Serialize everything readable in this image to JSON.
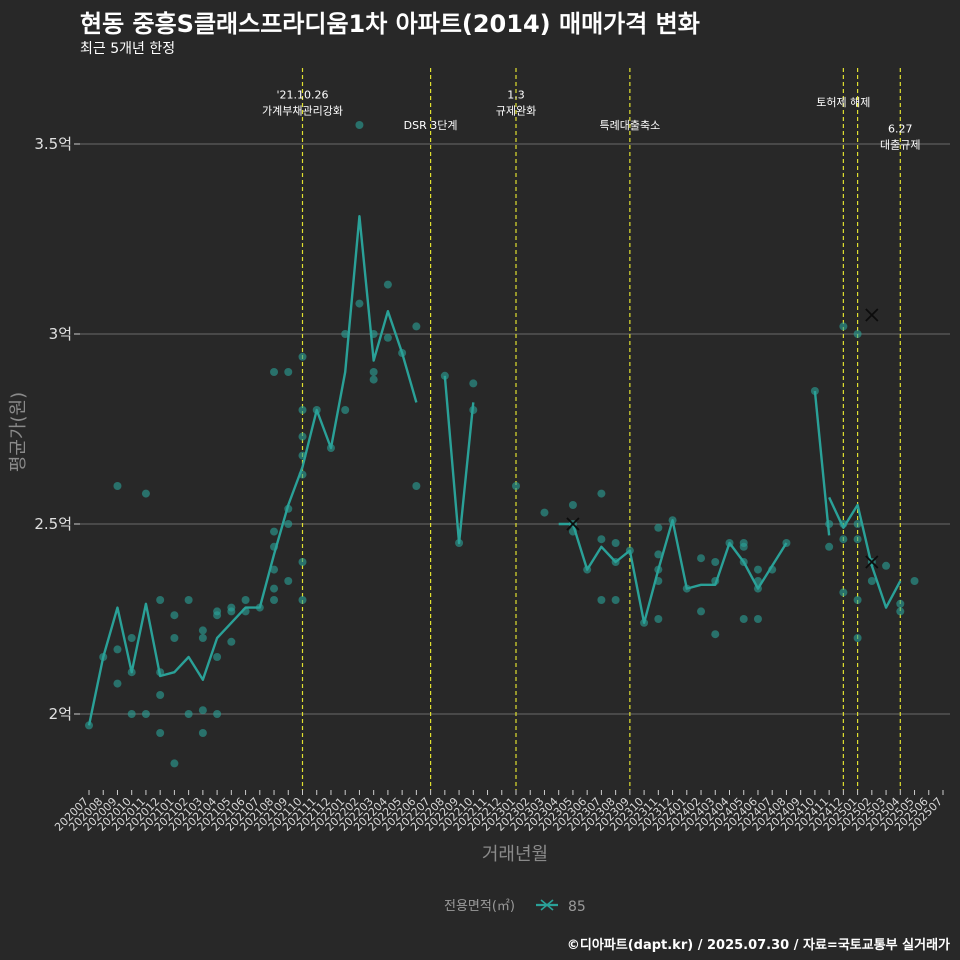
{
  "header": {
    "title": "현동 중흥S클래스프라디움1차 아파트(2014) 매매가격 변화",
    "subtitle": "최근 5개년 한정",
    "caption": "©디아파트(dapt.kr) / 2025.07.30 / 자료=국토교통부 실거래가"
  },
  "colors": {
    "background": "#282828",
    "series": "#2aa198",
    "event_line": "#e0e030",
    "grid": "#6a6a6a"
  },
  "chart_data": {
    "type": "line",
    "title": "현동 중흥S클래스프라디움1차 아파트(2014) 매매가격 변화",
    "subtitle": "최근 5개년 한정",
    "xlabel": "거래년월",
    "ylabel": "평균가(원)",
    "ylim": [
      1.8,
      3.7
    ],
    "yticks": [
      {
        "value": 2.0,
        "label": "2억"
      },
      {
        "value": 2.5,
        "label": "2.5억"
      },
      {
        "value": 3.0,
        "label": "3억"
      },
      {
        "value": 3.5,
        "label": "3.5억"
      }
    ],
    "grid": true,
    "legend": {
      "position": "bottom",
      "title": "전용면적(㎡)",
      "entries": [
        "85"
      ]
    },
    "categories": [
      "202007",
      "202008",
      "202009",
      "202010",
      "202011",
      "202012",
      "202101",
      "202102",
      "202103",
      "202104",
      "202105",
      "202106",
      "202107",
      "202108",
      "202109",
      "202110",
      "202111",
      "202112",
      "202201",
      "202202",
      "202203",
      "202204",
      "202205",
      "202206",
      "202207",
      "202208",
      "202209",
      "202210",
      "202211",
      "202212",
      "202301",
      "202302",
      "202303",
      "202304",
      "202305",
      "202306",
      "202307",
      "202308",
      "202309",
      "202310",
      "202311",
      "202312",
      "202401",
      "202402",
      "202403",
      "202404",
      "202405",
      "202406",
      "202407",
      "202408",
      "202409",
      "202410",
      "202411",
      "202412",
      "202501",
      "202502",
      "202503",
      "202504",
      "202505",
      "202506",
      "202507"
    ],
    "series": [
      {
        "name": "85",
        "line": [
          [
            "202007",
            1.97
          ],
          [
            "202008",
            2.15
          ],
          [
            "202009",
            2.28
          ],
          [
            "202010",
            2.11
          ],
          [
            "202011",
            2.29
          ],
          [
            "202012",
            2.1
          ],
          [
            "202101",
            2.11
          ],
          [
            "202102",
            2.15
          ],
          [
            "202103",
            2.09
          ],
          [
            "202104",
            2.2
          ],
          [
            "202105",
            2.24
          ],
          [
            "202106",
            2.28
          ],
          [
            "202107",
            2.28
          ],
          [
            "202108",
            2.42
          ],
          [
            "202109",
            2.55
          ],
          [
            "202110",
            2.65
          ],
          [
            "202111",
            2.8
          ],
          [
            "202112",
            2.7
          ],
          [
            "202201",
            2.9
          ],
          [
            "202202",
            3.31
          ],
          [
            "202203",
            2.93
          ],
          [
            "202204",
            3.06
          ],
          [
            "202205",
            2.95
          ],
          [
            "202206",
            2.82
          ],
          null,
          [
            "202208",
            2.89
          ],
          [
            "202209",
            2.45
          ],
          [
            "202210",
            2.82
          ],
          null,
          null,
          null,
          null,
          [
            "202304",
            2.5
          ],
          [
            "202305",
            2.5
          ],
          [
            "202306",
            2.38
          ],
          [
            "202307",
            2.44
          ],
          [
            "202308",
            2.4
          ],
          [
            "202309",
            2.43
          ],
          [
            "202310",
            2.24
          ],
          [
            "202311",
            2.38
          ],
          [
            "202312",
            2.51
          ],
          [
            "202401",
            2.33
          ],
          [
            "202402",
            2.34
          ],
          [
            "202403",
            2.34
          ],
          [
            "202404",
            2.45
          ],
          [
            "202405",
            2.4
          ],
          [
            "202406",
            2.33
          ],
          [
            "202407",
            2.39
          ],
          [
            "202408",
            2.45
          ],
          null,
          [
            "202410",
            2.85
          ],
          [
            "202411",
            2.47
          ],
          null,
          [
            "202411",
            2.57
          ],
          [
            "202412",
            2.49
          ],
          [
            "202501",
            2.55
          ],
          [
            "202502",
            2.39
          ],
          [
            "202503",
            2.28
          ],
          [
            "202504",
            2.35
          ]
        ],
        "points": [
          [
            "202007",
            1.97
          ],
          [
            "202008",
            2.15
          ],
          [
            "202009",
            2.6
          ],
          [
            "202009",
            2.17
          ],
          [
            "202009",
            2.08
          ],
          [
            "202010",
            2.2
          ],
          [
            "202010",
            2.11
          ],
          [
            "202010",
            2.0
          ],
          [
            "202011",
            2.58
          ],
          [
            "202011",
            2.0
          ],
          [
            "202012",
            2.3
          ],
          [
            "202012",
            2.11
          ],
          [
            "202012",
            2.05
          ],
          [
            "202012",
            1.95
          ],
          [
            "202101",
            2.26
          ],
          [
            "202101",
            2.2
          ],
          [
            "202101",
            1.87
          ],
          [
            "202102",
            2.3
          ],
          [
            "202102",
            2.0
          ],
          [
            "202103",
            2.22
          ],
          [
            "202103",
            2.2
          ],
          [
            "202103",
            2.01
          ],
          [
            "202103",
            1.95
          ],
          [
            "202104",
            2.27
          ],
          [
            "202104",
            2.26
          ],
          [
            "202104",
            2.15
          ],
          [
            "202104",
            2.0
          ],
          [
            "202105",
            2.28
          ],
          [
            "202105",
            2.27
          ],
          [
            "202105",
            2.19
          ],
          [
            "202106",
            2.3
          ],
          [
            "202106",
            2.27
          ],
          [
            "202107",
            2.28
          ],
          [
            "202108",
            2.9
          ],
          [
            "202108",
            2.48
          ],
          [
            "202108",
            2.44
          ],
          [
            "202108",
            2.38
          ],
          [
            "202108",
            2.33
          ],
          [
            "202108",
            2.3
          ],
          [
            "202109",
            2.9
          ],
          [
            "202109",
            2.54
          ],
          [
            "202109",
            2.5
          ],
          [
            "202109",
            2.35
          ],
          [
            "202110",
            2.94
          ],
          [
            "202110",
            2.8
          ],
          [
            "202110",
            2.73
          ],
          [
            "202110",
            2.68
          ],
          [
            "202110",
            2.63
          ],
          [
            "202110",
            2.4
          ],
          [
            "202110",
            2.3
          ],
          [
            "202111",
            2.8
          ],
          [
            "202112",
            2.7
          ],
          [
            "202201",
            3.0
          ],
          [
            "202201",
            2.8
          ],
          [
            "202202",
            3.55
          ],
          [
            "202202",
            3.08
          ],
          [
            "202203",
            3.0
          ],
          [
            "202203",
            2.9
          ],
          [
            "202203",
            2.88
          ],
          [
            "202204",
            3.13
          ],
          [
            "202204",
            2.99
          ],
          [
            "202205",
            2.95
          ],
          [
            "202206",
            3.02
          ],
          [
            "202206",
            2.6
          ],
          [
            "202208",
            2.89
          ],
          [
            "202209",
            2.45
          ],
          [
            "202210",
            2.87
          ],
          [
            "202210",
            2.8
          ],
          [
            "202301",
            2.6
          ],
          [
            "202303",
            2.53
          ],
          [
            "202305",
            2.5
          ],
          [
            "202305",
            2.55
          ],
          [
            "202305",
            2.48
          ],
          [
            "202306",
            2.38
          ],
          [
            "202307",
            2.58
          ],
          [
            "202307",
            2.46
          ],
          [
            "202307",
            2.3
          ],
          [
            "202308",
            2.45
          ],
          [
            "202308",
            2.4
          ],
          [
            "202308",
            2.3
          ],
          [
            "202309",
            2.43
          ],
          [
            "202310",
            2.24
          ],
          [
            "202311",
            2.49
          ],
          [
            "202311",
            2.42
          ],
          [
            "202311",
            2.38
          ],
          [
            "202311",
            2.35
          ],
          [
            "202311",
            2.25
          ],
          [
            "202312",
            2.51
          ],
          [
            "202401",
            2.33
          ],
          [
            "202402",
            2.41
          ],
          [
            "202402",
            2.27
          ],
          [
            "202403",
            2.4
          ],
          [
            "202403",
            2.35
          ],
          [
            "202403",
            2.21
          ],
          [
            "202404",
            2.45
          ],
          [
            "202405",
            2.45
          ],
          [
            "202405",
            2.44
          ],
          [
            "202405",
            2.4
          ],
          [
            "202405",
            2.25
          ],
          [
            "202406",
            2.38
          ],
          [
            "202406",
            2.35
          ],
          [
            "202406",
            2.33
          ],
          [
            "202406",
            2.25
          ],
          [
            "202407",
            2.38
          ],
          [
            "202408",
            2.45
          ],
          [
            "202410",
            2.85
          ],
          [
            "202411",
            2.5
          ],
          [
            "202411",
            2.44
          ],
          [
            "202412",
            3.02
          ],
          [
            "202412",
            2.5
          ],
          [
            "202412",
            2.46
          ],
          [
            "202412",
            2.32
          ],
          [
            "202501",
            3.0
          ],
          [
            "202501",
            2.5
          ],
          [
            "202501",
            2.46
          ],
          [
            "202501",
            2.3
          ],
          [
            "202501",
            2.2
          ],
          [
            "202502",
            2.4
          ],
          [
            "202502",
            2.35
          ],
          [
            "202503",
            2.39
          ],
          [
            "202504",
            2.29
          ],
          [
            "202504",
            2.27
          ],
          [
            "202505",
            2.35
          ]
        ],
        "x_markers": [
          [
            "202305",
            2.5
          ],
          [
            "202502",
            3.05
          ],
          [
            "202502",
            2.4
          ]
        ]
      }
    ],
    "events": [
      {
        "at": "202110",
        "lines": [
          "'21.10.26",
          "가계부채관리강화"
        ],
        "label_y": 3.62
      },
      {
        "at": "202207",
        "lines": [
          "DSR 3단계"
        ],
        "label_y": 3.54
      },
      {
        "at": "202301",
        "lines": [
          "1.3",
          "규제완화"
        ],
        "label_y": 3.62
      },
      {
        "at": "202309",
        "lines": [
          "특례대출축소"
        ],
        "label_y": 3.54
      },
      {
        "at": "202412",
        "lines": [
          "토허제 해제"
        ],
        "label_y": 3.6
      },
      {
        "at": "202501",
        "lines": [],
        "label_y": 3.6
      },
      {
        "at": "202504",
        "lines": [
          "6.27",
          "대출규제"
        ],
        "label_y": 3.53
      }
    ]
  }
}
